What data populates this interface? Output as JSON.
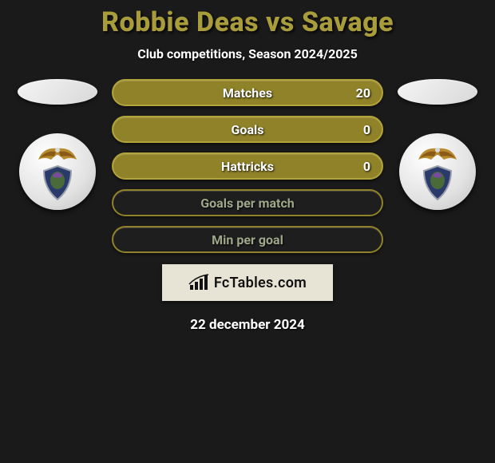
{
  "title_color": "#a99c3b",
  "title_parts": {
    "player1": "Robbie Deas",
    "vs": "vs",
    "player2": "Savage"
  },
  "subtitle": "Club competitions, Season 2024/2025",
  "stats": [
    {
      "label": "Matches",
      "left_value": "20",
      "bg": "#8f8228",
      "border": "#b2a33a",
      "text": "#ffffff"
    },
    {
      "label": "Goals",
      "left_value": "0",
      "bg": "#8f8228",
      "border": "#b2a33a",
      "text": "#ffffff"
    },
    {
      "label": "Hattricks",
      "left_value": "0",
      "bg": "#8f8228",
      "border": "#b2a33a",
      "text": "#ffffff"
    },
    {
      "label": "Goals per match",
      "left_value": "",
      "bg": "#1e1e1e",
      "border": "#8f8228",
      "text": "#9fa88a"
    },
    {
      "label": "Min per goal",
      "left_value": "",
      "bg": "#1e1e1e",
      "border": "#8f8228",
      "text": "#9fa88a"
    }
  ],
  "brand": "FcTables.com",
  "date": "22 december 2024",
  "background": "#1a1a1a",
  "badge_colors": {
    "eagle_body": "#b78b2e",
    "eagle_wing": "#8a5a17",
    "shield_outer": "#2a3a6a",
    "shield_ring": "#9aa0ae",
    "thistle": "#4a6a3a"
  }
}
